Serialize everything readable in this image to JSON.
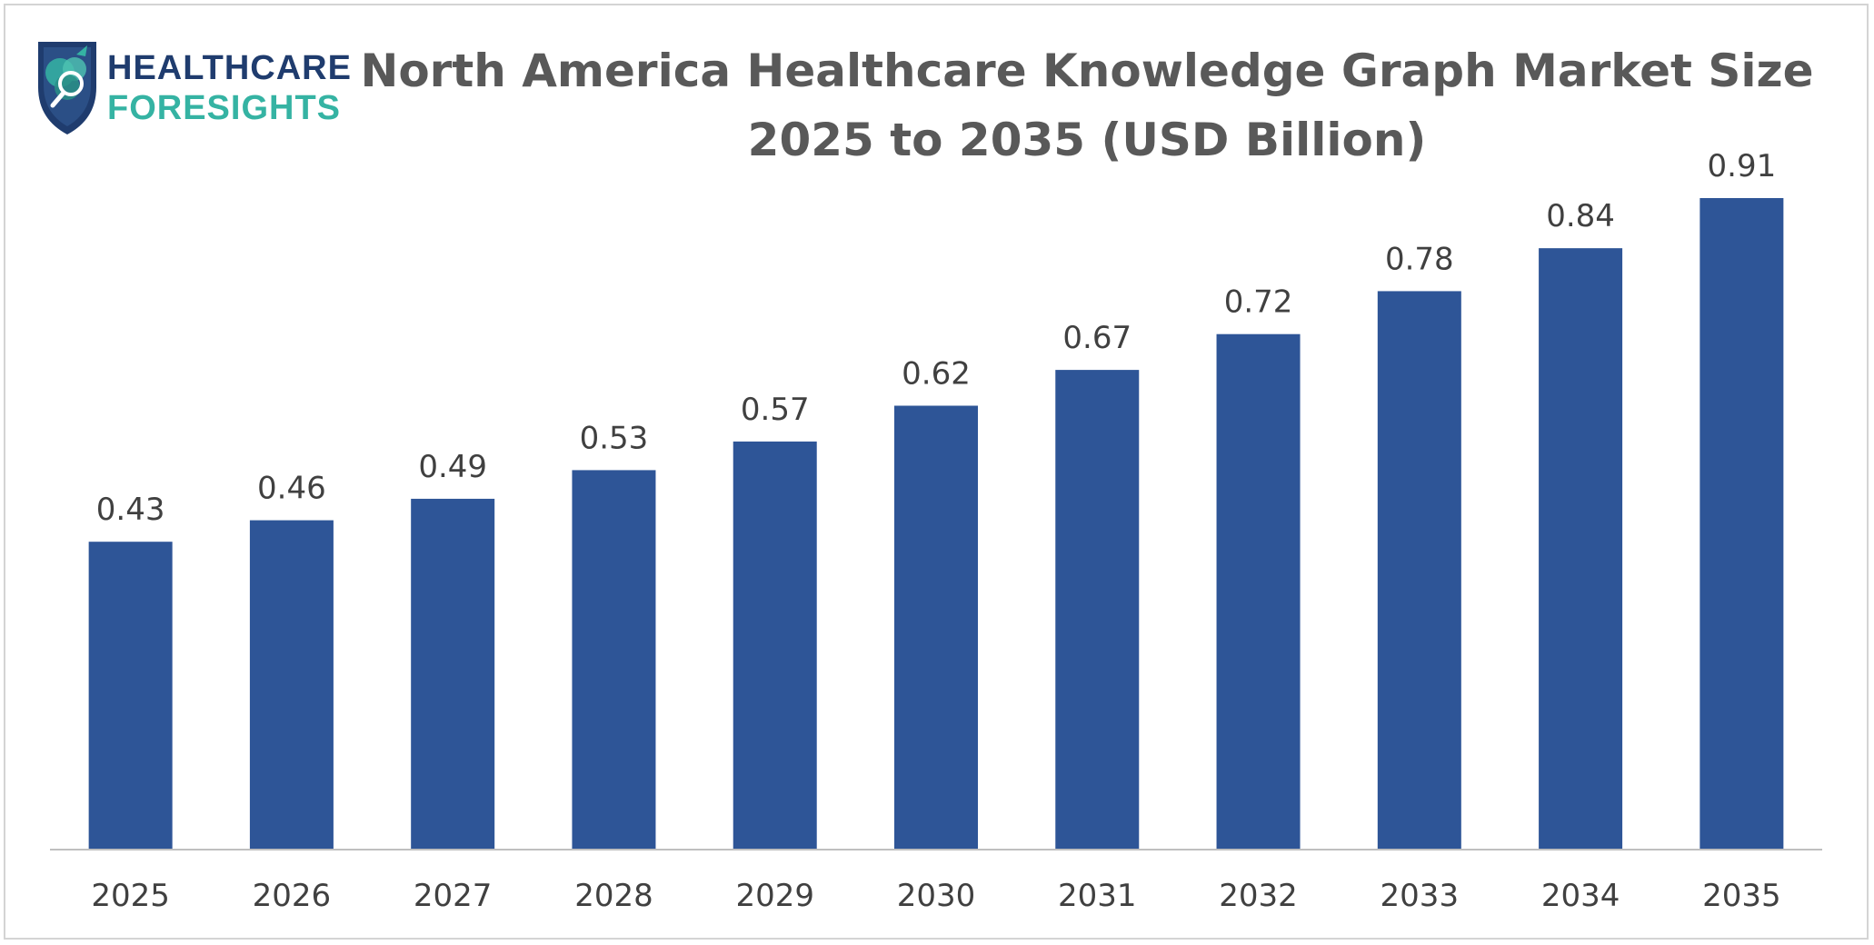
{
  "logo": {
    "line1": "HEALTHCARE",
    "line2": "FORESIGHTS",
    "icon": "brain-magnifier-shield-icon"
  },
  "colors": {
    "bar": "#2e5597",
    "axis": "#bfbfbf",
    "label": "#404040",
    "title": "#595959",
    "logo_dark": "#1f3c6e",
    "logo_teal": "#35b3a3"
  },
  "chart_data": {
    "type": "bar",
    "title": "North America Healthcare Knowledge Graph Market Size",
    "subtitle": "2025 to 2035 (USD Billion)",
    "categories": [
      "2025",
      "2026",
      "2027",
      "2028",
      "2029",
      "2030",
      "2031",
      "2032",
      "2033",
      "2034",
      "2035"
    ],
    "values": [
      0.43,
      0.46,
      0.49,
      0.53,
      0.57,
      0.62,
      0.67,
      0.72,
      0.78,
      0.84,
      0.91
    ],
    "value_labels": [
      "0.43",
      "0.46",
      "0.49",
      "0.53",
      "0.57",
      "0.62",
      "0.67",
      "0.72",
      "0.78",
      "0.84",
      "0.91"
    ],
    "xlabel": "",
    "ylabel": "",
    "ylim": [
      0,
      0.91
    ],
    "grid": false,
    "legend": "none"
  }
}
